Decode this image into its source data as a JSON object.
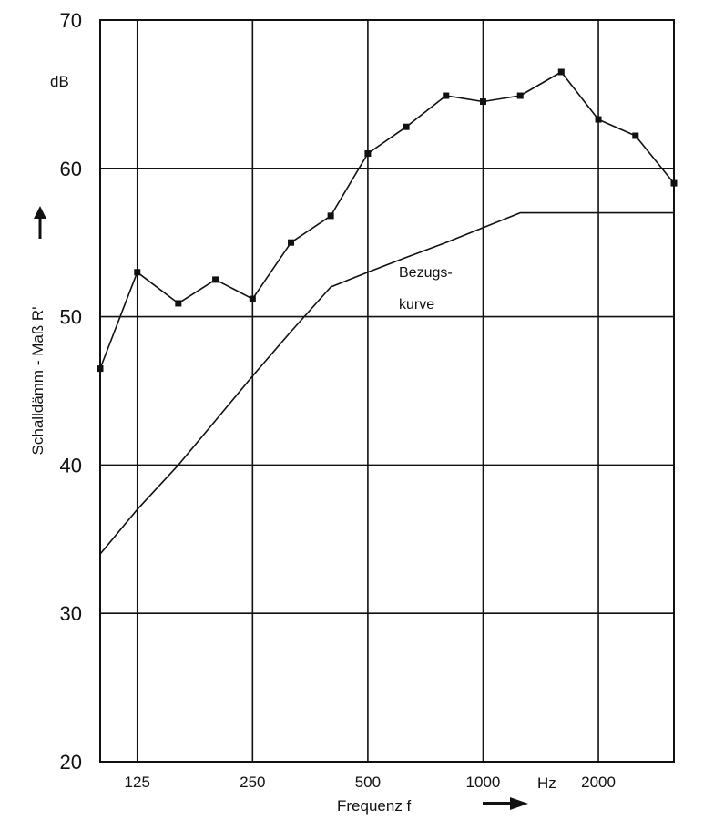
{
  "chart_data": {
    "type": "line",
    "title": "",
    "xlabel": "Frequenz f",
    "ylabel": "Schalldämm - Maß R'",
    "y_unit": "dB",
    "x_unit": "Hz",
    "x_scale": "log",
    "xlim": [
      100,
      3150
    ],
    "ylim": [
      20,
      70
    ],
    "grid": true,
    "x_tick_values": [
      125,
      250,
      500,
      1000,
      2000
    ],
    "x_tick_labels": [
      "125",
      "250",
      "500",
      "1000",
      "2000"
    ],
    "y_tick_values": [
      20,
      30,
      40,
      50,
      60,
      70
    ],
    "y_tick_labels": [
      "20",
      "30",
      "40",
      "50",
      "60",
      "70"
    ],
    "annotations": [
      {
        "text": "Bezugs-",
        "x": 660,
        "y": 53.3
      },
      {
        "text": "kurve",
        "x": 660,
        "y": 51.0
      }
    ],
    "series": [
      {
        "name": "",
        "markers": true,
        "x": [
          100,
          125,
          160,
          200,
          250,
          315,
          400,
          500,
          630,
          800,
          1000,
          1250,
          1600,
          2000,
          2500,
          3150
        ],
        "y": [
          46.5,
          53,
          50.9,
          52.5,
          51.2,
          55,
          56.8,
          61,
          62.8,
          64.9,
          64.5,
          64.9,
          66.5,
          63.3,
          62.2,
          59
        ]
      },
      {
        "name": "Bezugskurve",
        "markers": false,
        "x": [
          100,
          125,
          160,
          200,
          250,
          315,
          400,
          500,
          630,
          800,
          1000,
          1250,
          1600,
          2000,
          2500,
          3150
        ],
        "y": [
          34,
          37,
          40,
          43,
          46,
          49,
          52,
          53,
          54,
          55,
          56,
          57,
          57,
          57,
          57,
          57
        ]
      }
    ]
  }
}
